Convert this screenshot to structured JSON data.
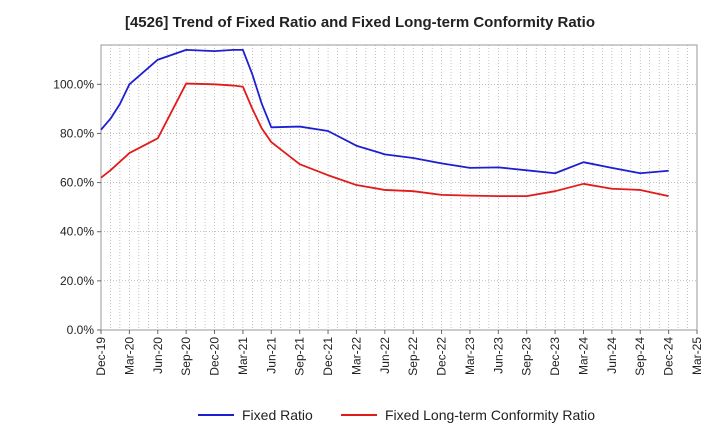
{
  "chart_data": {
    "type": "line",
    "title": "[4526]  Trend of Fixed Ratio and Fixed Long-term Conformity Ratio",
    "xlabel": "",
    "ylabel": "",
    "x_ticks": [
      "Dec-19",
      "Mar-20",
      "Jun-20",
      "Sep-20",
      "Dec-20",
      "Mar-21",
      "Jun-21",
      "Sep-21",
      "Dec-21",
      "Mar-22",
      "Jun-22",
      "Sep-22",
      "Dec-22",
      "Mar-23",
      "Jun-23",
      "Sep-23",
      "Dec-23",
      "Mar-24",
      "Jun-24",
      "Sep-24",
      "Dec-24",
      "Mar-25"
    ],
    "y_ticks": [
      "0.0%",
      "20.0%",
      "40.0%",
      "60.0%",
      "80.0%",
      "100.0%"
    ],
    "ylim": [
      0,
      116
    ],
    "grid": true,
    "legend_position": "bottom",
    "x": [
      "Dec-19",
      "Jan-20",
      "Feb-20",
      "Mar-20",
      "Jun-20",
      "Sep-20",
      "Dec-20",
      "Feb-21",
      "Mar-21",
      "Apr-21",
      "May-21",
      "Jun-21",
      "Sep-21",
      "Dec-21",
      "Mar-22",
      "Jun-22",
      "Sep-22",
      "Dec-22",
      "Mar-23",
      "Jun-23",
      "Sep-23",
      "Dec-23",
      "Mar-24",
      "Jun-24",
      "Sep-24",
      "Dec-24"
    ],
    "series": [
      {
        "name": "Fixed Ratio",
        "color": "#1f1fd2",
        "values": [
          81.5,
          86,
          92,
          100,
          110,
          114,
          113.5,
          114,
          114,
          104,
          92,
          82.5,
          82.8,
          81,
          75,
          71.5,
          70,
          67.8,
          66,
          66.2,
          65,
          63.8,
          68.3,
          66,
          63.8,
          64.8
        ]
      },
      {
        "name": "Fixed Long-term Conformity Ratio",
        "color": "#e31a1a",
        "values": [
          62,
          65,
          68.5,
          72,
          78,
          100.3,
          100,
          99.5,
          99,
          90,
          82,
          76.5,
          67.5,
          63,
          59,
          57,
          56.5,
          55,
          54.7,
          54.5,
          54.5,
          56.5,
          59.5,
          57.5,
          57,
          54.5
        ]
      }
    ]
  }
}
